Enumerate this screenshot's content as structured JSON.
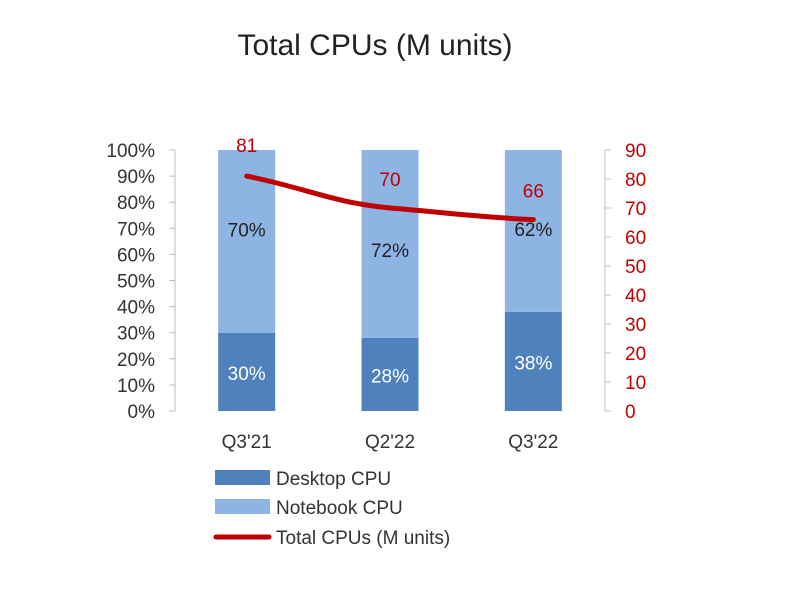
{
  "chart_data": {
    "type": "bar",
    "title": "Total CPUs (M units)",
    "categories": [
      "Q3'21",
      "Q2'22",
      "Q3'22"
    ],
    "series": [
      {
        "name": "Desktop CPU",
        "kind": "stacked-bar-percent",
        "values": [
          30,
          28,
          38
        ],
        "labels": [
          "30%",
          "28%",
          "38%"
        ],
        "color": "#4f81bd"
      },
      {
        "name": "Notebook CPU",
        "kind": "stacked-bar-percent",
        "values": [
          70,
          72,
          62
        ],
        "labels": [
          "70%",
          "72%",
          "62%"
        ],
        "color": "#8eb4e3"
      },
      {
        "name": "Total CPUs (M units)",
        "kind": "line",
        "axis": "right",
        "values": [
          81,
          70,
          66
        ],
        "labels": [
          "81",
          "70",
          "66"
        ],
        "color": "#c00000"
      }
    ],
    "left_axis": {
      "ylim": [
        0,
        100
      ],
      "ticks": [
        "0%",
        "10%",
        "20%",
        "30%",
        "40%",
        "50%",
        "60%",
        "70%",
        "80%",
        "90%",
        "100%"
      ]
    },
    "right_axis": {
      "ylim": [
        0,
        90
      ],
      "ticks": [
        "0",
        "10",
        "20",
        "30",
        "40",
        "50",
        "60",
        "70",
        "80",
        "90"
      ],
      "color": "#c00000"
    },
    "grid": false,
    "legend_position": "bottom"
  }
}
